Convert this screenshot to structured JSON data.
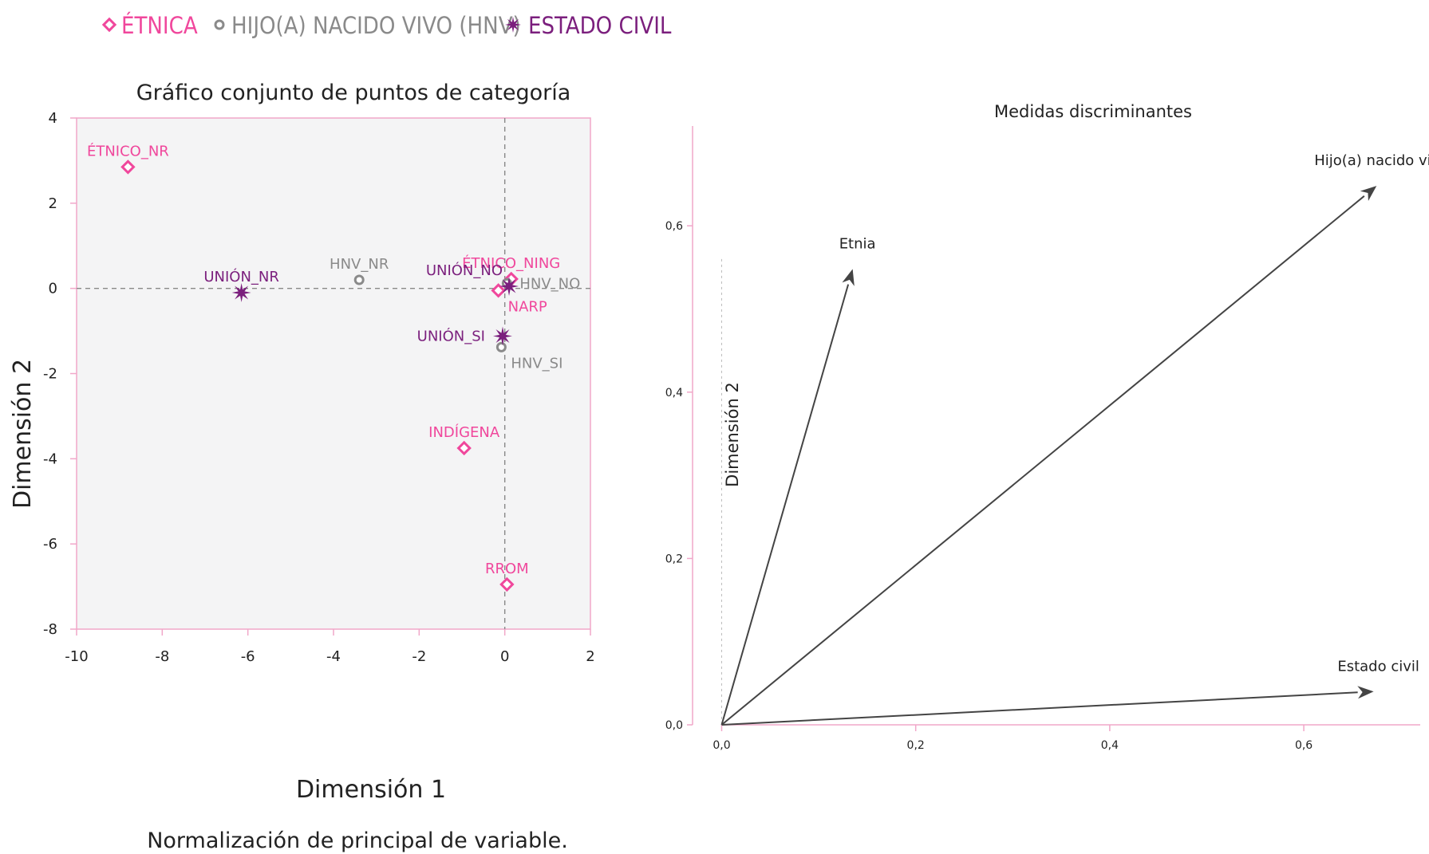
{
  "legend": [
    {
      "label": "ÉTNICA",
      "color": "#f0479c",
      "marker": "diamond"
    },
    {
      "label": "HIJO(A) NACIDO VIVO (HNV)",
      "color": "#8a8a8a",
      "marker": "circle"
    },
    {
      "label": "ESTADO CIVIL",
      "color": "#7b1f7d",
      "marker": "star"
    }
  ],
  "chart_data": [
    {
      "type": "scatter",
      "title": "Gráfico conjunto de puntos de categoría",
      "xlabel": "Dimensión 1",
      "ylabel": "Dimensión 2",
      "xlim": [
        -10,
        2
      ],
      "ylim": [
        -8,
        4
      ],
      "xticks": [
        -10,
        -8,
        -6,
        -4,
        -2,
        0,
        2
      ],
      "yticks": [
        4,
        2,
        0,
        -2,
        -4,
        -6,
        -8
      ],
      "reference_lines": {
        "x": 0,
        "y": 0
      },
      "footnote": "Normalización de principal de variable.",
      "series": [
        {
          "name": "ÉTNICA",
          "color": "#f0479c",
          "marker": "diamond",
          "points": [
            {
              "label": "ÉTNICO_NR",
              "x": -8.8,
              "y": 2.85,
              "label_pos": "above"
            },
            {
              "label": "ÉTNICO_NING",
              "x": 0.15,
              "y": 0.22,
              "label_pos": "above"
            },
            {
              "label": "NARP",
              "x": -0.15,
              "y": -0.05,
              "label_pos": "below-right"
            },
            {
              "label": "INDÍGENA",
              "x": -0.95,
              "y": -3.75,
              "label_pos": "above"
            },
            {
              "label": "RROM",
              "x": 0.05,
              "y": -6.95,
              "label_pos": "above"
            }
          ]
        },
        {
          "name": "HIJO(A) NACIDO VIVO (HNV)",
          "color": "#8a8a8a",
          "marker": "circle",
          "points": [
            {
              "label": "HNV_NR",
              "x": -3.4,
              "y": 0.2,
              "label_pos": "above"
            },
            {
              "label": "HNV_NO",
              "x": 0.05,
              "y": 0.12,
              "label_pos": "right"
            },
            {
              "label": "HNV_SI",
              "x": -0.08,
              "y": -1.38,
              "label_pos": "below-right"
            }
          ]
        },
        {
          "name": "ESTADO CIVIL",
          "color": "#7b1f7d",
          "marker": "star",
          "points": [
            {
              "label": "UNIÓN_NR",
              "x": -6.15,
              "y": -0.1,
              "label_pos": "above"
            },
            {
              "label": "UNIÓN_NO",
              "x": 0.1,
              "y": 0.05,
              "label_pos": "above-left"
            },
            {
              "label": "UNIÓN_SI",
              "x": -0.05,
              "y": -1.12,
              "label_pos": "left"
            }
          ]
        }
      ]
    },
    {
      "type": "vector",
      "title": "Medidas discriminantes",
      "xlabel": "",
      "ylabel": "Dimensión 2",
      "xlim": [
        -0.03,
        0.72
      ],
      "ylim": [
        0,
        0.72
      ],
      "xticks": [
        "0,0",
        "0,2",
        "0,4",
        "0,6"
      ],
      "xtick_values": [
        0,
        0.2,
        0.4,
        0.6
      ],
      "yticks": [
        "0,0",
        "0,2",
        "0,4",
        "0,6"
      ],
      "ytick_values": [
        0,
        0.2,
        0.4,
        0.6
      ],
      "vectors": [
        {
          "label": "Etnia",
          "x": 0.135,
          "y": 0.548
        },
        {
          "label": "Hijo(a) nacido vivo",
          "x": 0.675,
          "y": 0.648
        },
        {
          "label": "Estado civil",
          "x": 0.672,
          "y": 0.04
        }
      ]
    }
  ]
}
